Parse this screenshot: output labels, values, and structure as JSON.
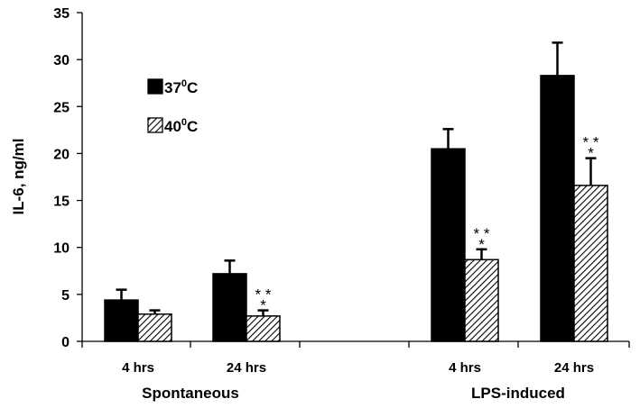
{
  "chart_data": {
    "type": "bar",
    "title": "",
    "xlabel": "",
    "ylabel": "IL-6, ng/ml",
    "ylim": [
      0,
      35
    ],
    "yticks": [
      0,
      5,
      10,
      15,
      20,
      25,
      30,
      35
    ],
    "grid": false,
    "legend_position": "top-left",
    "groups": [
      {
        "label": "Spontaneous",
        "categories": [
          "4 hrs",
          "24 hrs"
        ]
      },
      {
        "label": "LPS-induced",
        "categories": [
          "4 hrs",
          "24 hrs"
        ]
      }
    ],
    "categories": [
      "4 hrs",
      "24 hrs",
      "4 hrs",
      "24 hrs"
    ],
    "series": [
      {
        "name": "37",
        "name_sup": "0",
        "name_suffix": "C",
        "fill": "solid",
        "color": "#000000",
        "values": [
          4.4,
          7.2,
          20.5,
          28.3
        ],
        "errors": [
          1.1,
          1.4,
          2.1,
          3.5
        ],
        "annotations": [
          "",
          "",
          "",
          ""
        ]
      },
      {
        "name": "40",
        "name_sup": "0",
        "name_suffix": "C",
        "fill": "hatched",
        "color": "#000000",
        "values": [
          2.9,
          2.7,
          8.7,
          16.6
        ],
        "errors": [
          0.4,
          0.6,
          1.1,
          2.9
        ],
        "annotations": [
          "",
          "**\n*",
          "**\n*",
          "**\n*"
        ]
      }
    ]
  }
}
